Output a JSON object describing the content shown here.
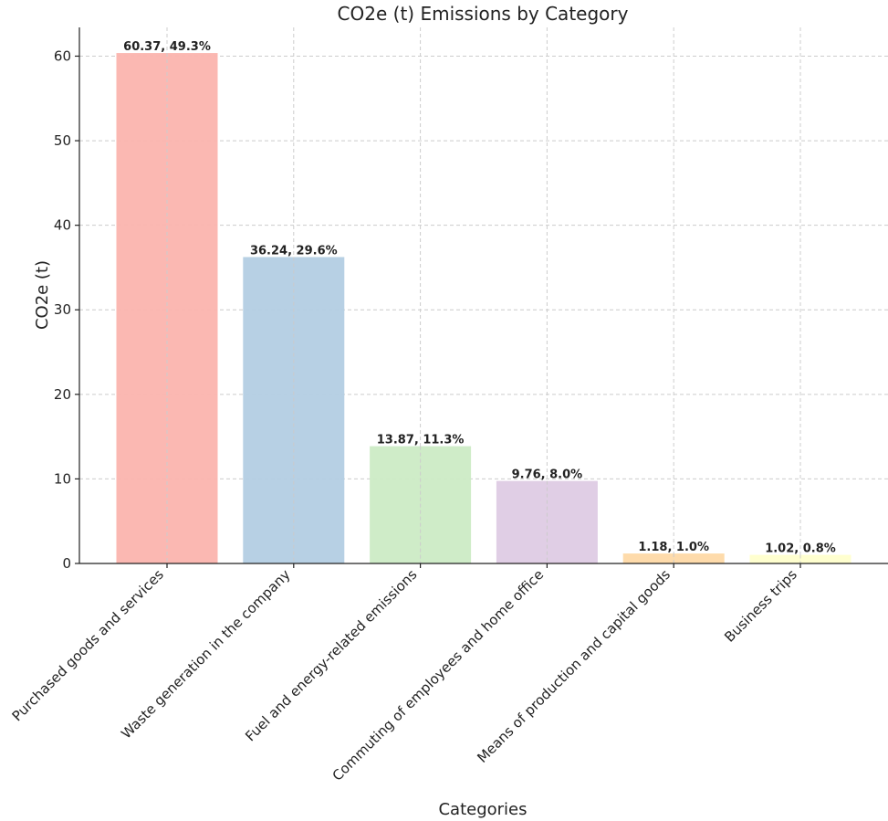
{
  "chart_data": {
    "type": "bar",
    "title": "CO2e (t) Emissions by Category",
    "xlabel": "Categories",
    "ylabel": "CO2e (t)",
    "ylim": [
      0,
      63.4
    ],
    "yticks": [
      0,
      10,
      20,
      30,
      40,
      50,
      60
    ],
    "grid": true,
    "categories": [
      "Purchased goods and services",
      "Waste generation in the company",
      "Fuel and energy-related emissions",
      "Commuting of employees and home office",
      "Means of production and capital goods",
      "Business trips"
    ],
    "values": [
      60.37,
      36.24,
      13.87,
      9.76,
      1.18,
      1.02
    ],
    "data_labels": [
      "60.37, 49.3%",
      "36.24, 29.6%",
      "13.87, 11.3%",
      "9.76, 8.0%",
      "1.18, 1.0%",
      "1.02, 0.8%"
    ],
    "colors": [
      "#fbb4ae",
      "#b3cde3",
      "#ccebc5",
      "#decbe4",
      "#fed9a6",
      "#ffffcc"
    ]
  }
}
